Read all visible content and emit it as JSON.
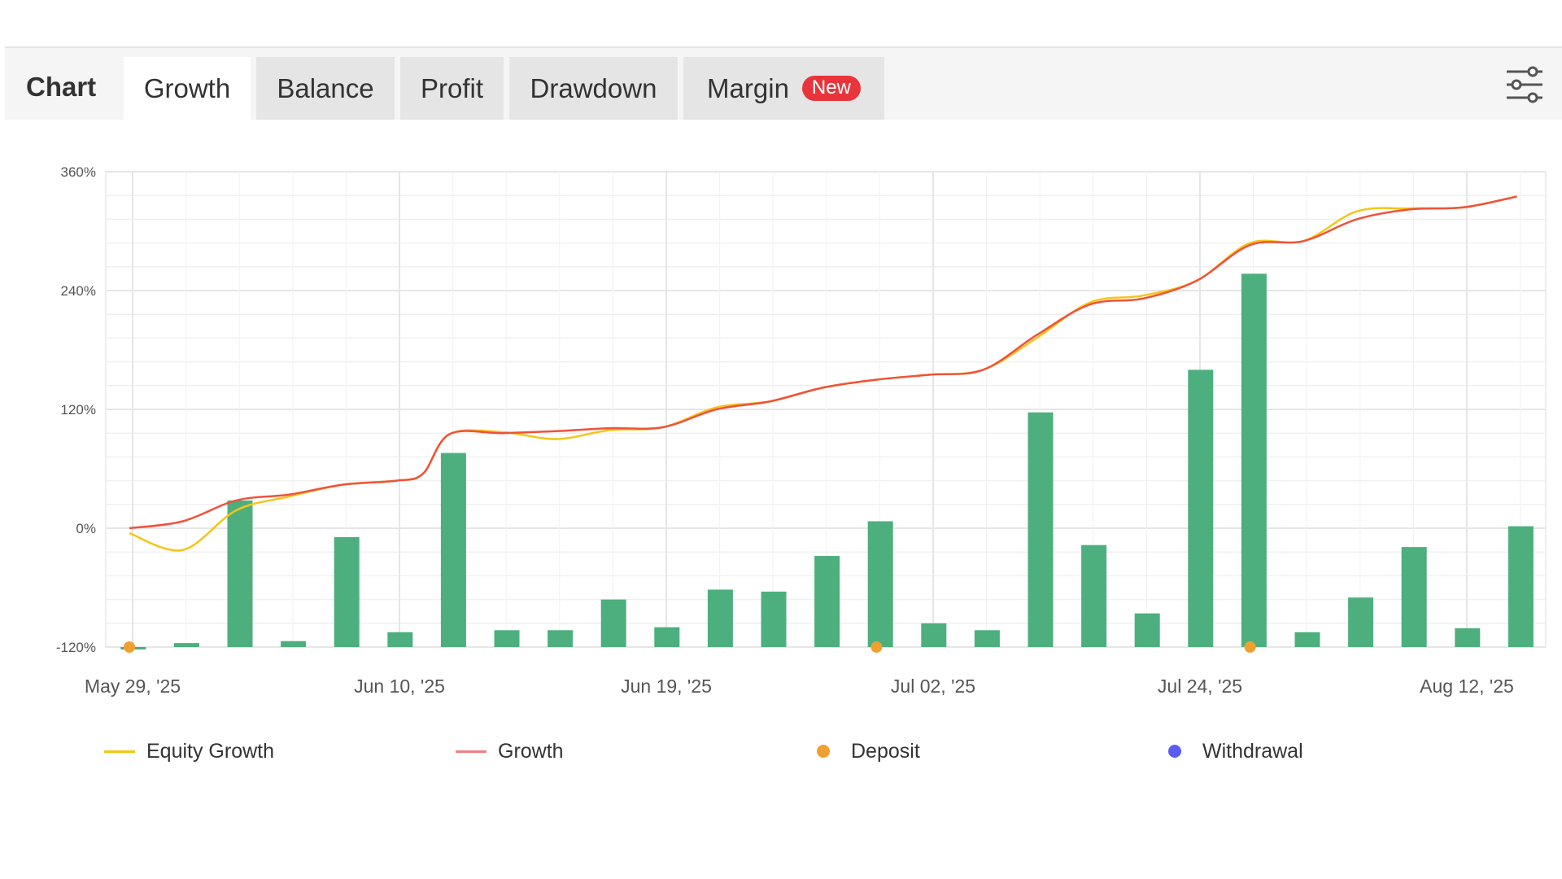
{
  "tabs": {
    "header_label": "Chart",
    "items": [
      {
        "label": "Growth",
        "active": true
      },
      {
        "label": "Balance",
        "active": false
      },
      {
        "label": "Profit",
        "active": false
      },
      {
        "label": "Drawdown",
        "active": false
      },
      {
        "label": "Margin",
        "active": false,
        "badge": "New"
      }
    ],
    "settings_icon": "sliders-icon"
  },
  "colors": {
    "equity": "#f5c518",
    "growth": "#f0523a",
    "growth_legend": "#f08080",
    "bars": "#4caf7d",
    "deposit": "#f0a030",
    "withdrawal": "#5a5ef0",
    "badge": "#e8353b"
  },
  "legend": [
    {
      "label": "Equity Growth",
      "kind": "line",
      "color": "#f5c518"
    },
    {
      "label": "Growth",
      "kind": "line",
      "color": "#f08080"
    },
    {
      "label": "Deposit",
      "kind": "dot",
      "color": "#f0a030"
    },
    {
      "label": "Withdrawal",
      "kind": "dot",
      "color": "#5a5ef0"
    }
  ],
  "chart_data": {
    "type": "line",
    "ylim": [
      -120,
      360
    ],
    "y_ticks": [
      "360%",
      "240%",
      "120%",
      "0%",
      "-120%"
    ],
    "y_tick_values": [
      360,
      240,
      120,
      0,
      -120
    ],
    "x_tick_labels": [
      "May 29, '25",
      "Jun 10, '25",
      "Jun 19, '25",
      "Jul 02, '25",
      "Jul 24, '25",
      "Aug 12, '25"
    ],
    "x_tick_index": [
      0,
      5,
      10,
      15,
      20,
      25
    ],
    "bar_base": -120,
    "bars": [
      -120,
      -116,
      28,
      -114,
      -9,
      -105,
      76,
      -103,
      -103,
      -72,
      -100,
      -62,
      -64,
      -28,
      7,
      -96,
      -103,
      117,
      -17,
      -86,
      160,
      257,
      -105,
      -70,
      -19,
      -101,
      2
    ],
    "series": [
      {
        "name": "Equity Growth",
        "x": [
          0,
          1,
          2,
          3,
          4,
          5,
          5.5,
          6,
          7,
          8,
          9,
          10,
          11,
          12,
          13,
          14,
          15,
          16,
          17,
          18,
          19,
          20,
          21,
          22,
          23,
          24,
          25,
          26
        ],
        "values": [
          -5,
          -22,
          18,
          32,
          44,
          48,
          55,
          95,
          97,
          90,
          99,
          102,
          122,
          128,
          142,
          150,
          155,
          160,
          192,
          228,
          235,
          250,
          288,
          290,
          320,
          323,
          324,
          335
        ]
      },
      {
        "name": "Growth",
        "x": [
          0,
          1,
          2,
          3,
          4,
          5,
          5.5,
          6,
          7,
          8,
          9,
          10,
          11,
          12,
          13,
          14,
          15,
          16,
          17,
          18,
          19,
          20,
          21,
          22,
          23,
          24,
          25,
          26
        ],
        "values": [
          0,
          7,
          28,
          34,
          44,
          48,
          55,
          95,
          96,
          98,
          101,
          102,
          120,
          128,
          142,
          150,
          155,
          160,
          195,
          226,
          232,
          250,
          286,
          290,
          312,
          322,
          324,
          335
        ]
      }
    ],
    "deposits_x": [
      0,
      14,
      21
    ]
  }
}
